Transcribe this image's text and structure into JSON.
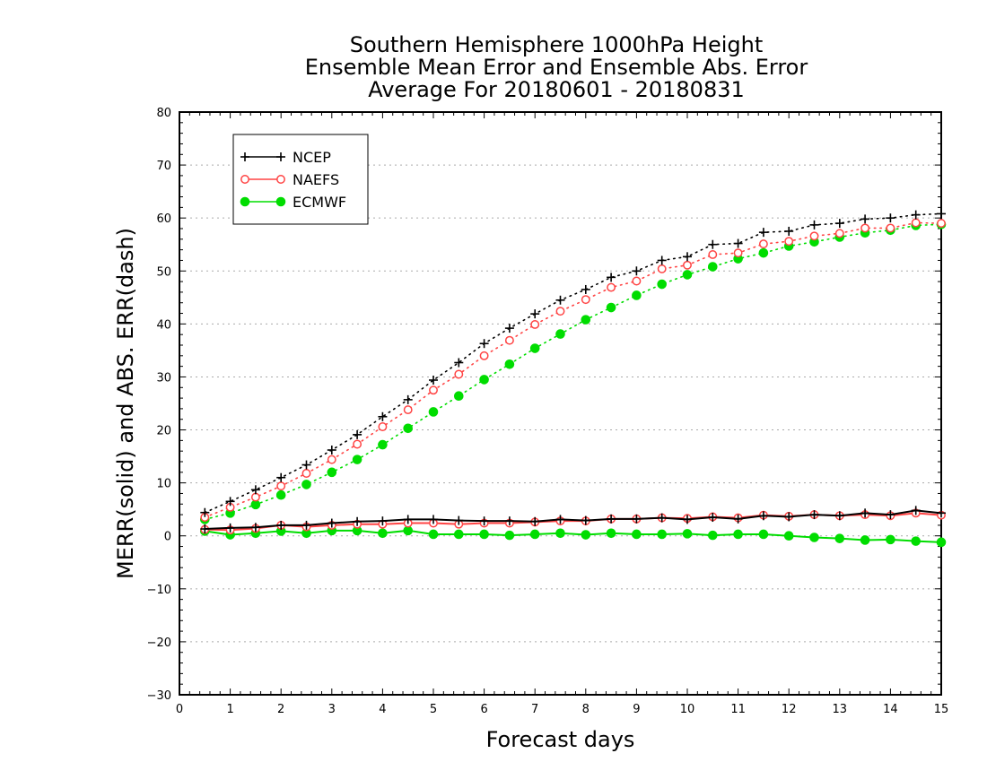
{
  "chart_data": {
    "type": "line",
    "title_lines": [
      "Southern Hemisphere 1000hPa Height",
      "Ensemble Mean Error and Ensemble Abs. Error",
      "Average For 20180601 - 20180831"
    ],
    "xlabel": "Forecast days",
    "ylabel": "MERR(solid) and ABS. ERR(dash)",
    "xlim": [
      0,
      15
    ],
    "ylim": [
      -30,
      80
    ],
    "xticks": [
      "0",
      "1",
      "2",
      "3",
      "4",
      "5",
      "6",
      "7",
      "8",
      "9",
      "10",
      "11",
      "12",
      "13",
      "14",
      "15"
    ],
    "yticks": [
      "80",
      "70",
      "60",
      "50",
      "40",
      "30",
      "20",
      "10",
      "0",
      "−10",
      "−20",
      "−30"
    ],
    "grid": "horizontal dotted",
    "legend_position": "top-left",
    "x": [
      0.5,
      1,
      1.5,
      2,
      2.5,
      3,
      3.5,
      4,
      4.5,
      5,
      5.5,
      6,
      6.5,
      7,
      7.5,
      8,
      8.5,
      9,
      9.5,
      10,
      10.5,
      11,
      11.5,
      12,
      12.5,
      13,
      13.5,
      14,
      14.5,
      15
    ],
    "series": [
      {
        "name": "NCEP",
        "color": "#000000",
        "marker": "plus",
        "abs_error": [
          4.4,
          6.5,
          8.7,
          11.0,
          13.4,
          16.2,
          19.1,
          22.5,
          25.7,
          29.4,
          32.7,
          36.3,
          39.2,
          41.9,
          44.5,
          46.5,
          48.8,
          50.0,
          52.0,
          52.7,
          55.0,
          55.2,
          57.3,
          57.5,
          58.7,
          59.0,
          59.8,
          60.0,
          60.6,
          60.8
        ],
        "mean_error": [
          1.3,
          1.5,
          1.6,
          2.0,
          2.0,
          2.4,
          2.7,
          2.8,
          3.1,
          3.1,
          2.9,
          2.8,
          2.8,
          2.7,
          3.1,
          2.9,
          3.2,
          3.2,
          3.4,
          3.1,
          3.5,
          3.2,
          3.8,
          3.6,
          4.0,
          3.8,
          4.3,
          4.0,
          4.8,
          4.3
        ]
      },
      {
        "name": "NAEFS",
        "color": "#ff4444",
        "marker": "open-circle",
        "abs_error": [
          3.5,
          5.4,
          7.3,
          9.4,
          11.8,
          14.4,
          17.3,
          20.6,
          23.8,
          27.5,
          30.5,
          34.0,
          36.9,
          39.9,
          42.4,
          44.6,
          46.9,
          48.1,
          50.4,
          51.1,
          53.1,
          53.4,
          55.1,
          55.6,
          56.6,
          57.1,
          58.1,
          58.1,
          59.1,
          59.0
        ],
        "mean_error": [
          1.2,
          1.1,
          1.4,
          2.0,
          1.7,
          2.0,
          2.2,
          2.2,
          2.4,
          2.4,
          2.2,
          2.4,
          2.4,
          2.6,
          2.8,
          2.8,
          3.2,
          3.2,
          3.4,
          3.3,
          3.6,
          3.4,
          3.9,
          3.7,
          4.0,
          3.8,
          4.0,
          3.8,
          4.3,
          3.9
        ]
      },
      {
        "name": "ECMWF",
        "color": "#00dd00",
        "marker": "filled-circle",
        "abs_error": [
          3.1,
          4.3,
          5.9,
          7.7,
          9.7,
          12.0,
          14.4,
          17.2,
          20.3,
          23.4,
          26.4,
          29.5,
          32.4,
          35.4,
          38.1,
          40.8,
          43.1,
          45.4,
          47.5,
          49.3,
          50.8,
          52.3,
          53.4,
          54.7,
          55.5,
          56.4,
          57.2,
          57.7,
          58.6,
          58.8
        ],
        "mean_error": [
          0.9,
          0.2,
          0.5,
          0.9,
          0.5,
          1.0,
          1.0,
          0.5,
          1.0,
          0.3,
          0.3,
          0.3,
          0.1,
          0.3,
          0.5,
          0.2,
          0.5,
          0.3,
          0.3,
          0.4,
          0.1,
          0.3,
          0.3,
          0.0,
          -0.3,
          -0.5,
          -0.8,
          -0.7,
          -1.0,
          -1.2
        ]
      }
    ]
  }
}
